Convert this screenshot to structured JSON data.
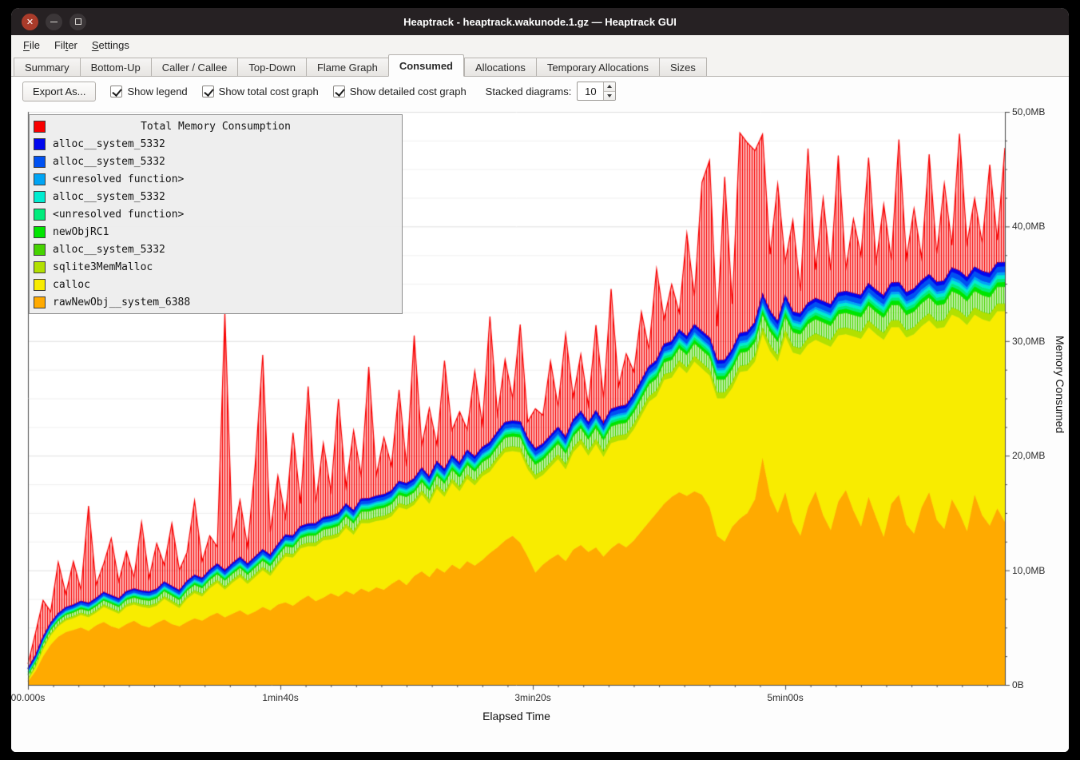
{
  "window": {
    "title": "Heaptrack - heaptrack.wakunode.1.gz — Heaptrack GUI"
  },
  "menubar": {
    "items": [
      {
        "label": "File",
        "underline": 0
      },
      {
        "label": "Filter",
        "underline": 3
      },
      {
        "label": "Settings",
        "underline": 0
      }
    ]
  },
  "tabs": {
    "items": [
      "Summary",
      "Bottom-Up",
      "Caller / Callee",
      "Top-Down",
      "Flame Graph",
      "Consumed",
      "Allocations",
      "Temporary Allocations",
      "Sizes"
    ],
    "active_index": 5
  },
  "toolbar": {
    "export_label": "Export As...",
    "checkboxes": [
      {
        "label": "Show legend",
        "checked": true
      },
      {
        "label": "Show total cost graph",
        "checked": true
      },
      {
        "label": "Show detailed cost graph",
        "checked": true
      }
    ],
    "stacked_label": "Stacked diagrams:",
    "stacked_value": "10"
  },
  "chart_data": {
    "type": "area",
    "stacked": true,
    "legend_title": "Total Memory Consumption",
    "x_title": "Elapsed Time",
    "y_title": "Memory Consumed",
    "xlim_s": [
      0,
      387
    ],
    "ylim_mb": [
      0,
      50
    ],
    "x_step_s": 3,
    "n_points": 130,
    "grid": "horizontal-light",
    "x_ticks": [
      {
        "t": 0,
        "label": "00.000s"
      },
      {
        "t": 100,
        "label": "1min40s"
      },
      {
        "t": 200,
        "label": "3min20s"
      },
      {
        "t": 300,
        "label": "5min00s"
      }
    ],
    "y_ticks": [
      {
        "mb": 0,
        "label": "0B"
      },
      {
        "mb": 10,
        "label": "10,0MB"
      },
      {
        "mb": 20,
        "label": "20,0MB"
      },
      {
        "mb": 30,
        "label": "30,0MB"
      },
      {
        "mb": 40,
        "label": "40,0MB"
      },
      {
        "mb": 50,
        "label": "50,0MB"
      }
    ],
    "series": [
      {
        "name": "rawNewObj__system_6388",
        "color": "#ffaa00",
        "values": [
          0.3,
          1.2,
          2.5,
          3.5,
          4.2,
          4.6,
          4.8,
          5.0,
          4.7,
          5.2,
          5.5,
          5.1,
          4.9,
          5.3,
          5.6,
          5.2,
          5.0,
          5.4,
          5.7,
          5.3,
          5.1,
          5.5,
          5.8,
          5.6,
          6.0,
          6.3,
          5.9,
          6.2,
          6.5,
          6.1,
          6.4,
          6.8,
          6.5,
          7.0,
          7.2,
          6.9,
          7.4,
          7.8,
          7.3,
          7.6,
          8.0,
          7.7,
          8.2,
          7.9,
          8.4,
          8.1,
          8.5,
          8.3,
          8.8,
          9.2,
          8.7,
          9.5,
          9.9,
          9.4,
          10.2,
          9.8,
          10.5,
          10.1,
          10.8,
          10.4,
          10.9,
          11.5,
          12.0,
          12.6,
          13.0,
          12.4,
          11.2,
          9.8,
          10.5,
          11.0,
          11.4,
          10.8,
          11.8,
          12.2,
          11.6,
          12.0,
          11.2,
          11.9,
          12.4,
          12.0,
          12.6,
          13.4,
          14.2,
          15.0,
          15.8,
          16.4,
          16.8,
          16.5,
          16.9,
          16.6,
          15.5,
          13.0,
          12.5,
          13.8,
          14.5,
          15.0,
          16.2,
          19.8,
          16.5,
          15.0,
          16.8,
          14.2,
          13.0,
          15.5,
          16.9,
          14.8,
          13.5,
          16.0,
          17.0,
          15.2,
          13.8,
          16.4,
          14.6,
          12.9,
          15.8,
          16.6,
          14.0,
          13.2,
          15.5,
          16.8,
          14.4,
          13.6,
          16.2,
          15.0,
          13.4,
          16.6,
          14.8,
          13.9,
          15.4,
          14.2
        ]
      },
      {
        "name": "calloc",
        "color": "#f8ec00",
        "values": [
          0.1,
          0.3,
          0.6,
          0.8,
          0.9,
          1.0,
          1.0,
          1.1,
          1.2,
          1.1,
          1.3,
          1.4,
          1.3,
          1.5,
          1.4,
          1.6,
          1.7,
          1.5,
          1.8,
          1.8,
          1.6,
          2.0,
          2.2,
          2.1,
          2.4,
          2.6,
          2.4,
          2.7,
          2.9,
          2.7,
          3.0,
          3.2,
          3.0,
          3.4,
          4.0,
          4.2,
          4.5,
          4.3,
          4.8,
          5.0,
          4.7,
          5.2,
          5.5,
          5.2,
          5.7,
          6.0,
          5.8,
          6.1,
          5.9,
          6.3,
          6.6,
          6.2,
          6.7,
          6.4,
          6.9,
          6.6,
          7.1,
          6.8,
          7.2,
          7.0,
          7.3,
          7.1,
          7.5,
          7.7,
          7.4,
          7.9,
          7.6,
          8.1,
          7.8,
          8.0,
          8.3,
          8.0,
          8.5,
          8.8,
          8.4,
          9.0,
          8.7,
          9.2,
          8.9,
          9.4,
          9.7,
          10.1,
          10.5,
          10.2,
          10.8,
          10.4,
          11.0,
          10.7,
          11.3,
          11.0,
          11.5,
          12.0,
          12.5,
          12.1,
          12.8,
          12.4,
          12.0,
          10.8,
          12.6,
          13.2,
          13.6,
          14.8,
          15.8,
          14.2,
          13.2,
          15.0,
          16.0,
          14.5,
          13.6,
          15.2,
          16.4,
          14.8,
          16.0,
          17.2,
          15.4,
          14.6,
          16.3,
          17.4,
          15.8,
          15.0,
          16.7,
          17.6,
          16.1,
          17.0,
          18.0,
          15.7,
          17.1,
          17.8,
          17.2,
          18.4
        ]
      },
      {
        "name": "sqlite3MemMalloc",
        "color": "#b2e000",
        "ramp_mb": [
          0.15,
          0.65
        ]
      },
      {
        "name": "alloc__system_5332",
        "color": "#46d300",
        "ramp_mb": [
          0.3,
          1.5
        ],
        "hatched": true
      },
      {
        "name": "newObjRC1",
        "color": "#00e400",
        "ramp_mb": [
          0.1,
          0.4
        ]
      },
      {
        "name": "<unresolved function>",
        "color": "#00ec7c",
        "ramp_mb": [
          0.08,
          0.3
        ]
      },
      {
        "name": "alloc__system_5332",
        "color": "#00ecd0",
        "ramp_mb": [
          0.08,
          0.3
        ]
      },
      {
        "name": "<unresolved function>",
        "color": "#00a4f4",
        "ramp_mb": [
          0.06,
          0.25
        ]
      },
      {
        "name": "alloc__system_5332",
        "color": "#0051f2",
        "ramp_mb": [
          0.15,
          0.5
        ]
      },
      {
        "name": "alloc__system_5332",
        "color": "#0007ee",
        "ramp_mb": [
          0.1,
          0.35
        ]
      }
    ],
    "total": {
      "name": "Total Memory Consumption",
      "color": "#f80000",
      "extra_above_stack_mb": [
        0.4,
        2.0,
        3.2,
        1.0,
        4.5,
        1.2,
        3.8,
        1.0,
        8.5,
        1.2,
        2.5,
        5.0,
        1.5,
        3.5,
        1.0,
        6.0,
        1.2,
        4.0,
        1.5,
        5.5,
        1.8,
        2.5,
        6.5,
        1.5,
        3.0,
        1.5,
        22.5,
        2.0,
        5.0,
        1.5,
        8.0,
        17.0,
        2.0,
        6.0,
        1.5,
        9.0,
        2.0,
        12.0,
        1.8,
        6.5,
        2.2,
        10.0,
        1.5,
        7.0,
        2.0,
        11.5,
        1.8,
        5.0,
        2.2,
        8.0,
        1.5,
        12.5,
        2.0,
        6.0,
        1.5,
        9.5,
        2.2,
        4.5,
        1.8,
        7.5,
        2.0,
        11.0,
        1.5,
        5.5,
        2.0,
        8.5,
        1.5,
        3.5,
        2.5,
        6.5,
        1.8,
        9.0,
        2.0,
        5.0,
        1.5,
        7.5,
        2.2,
        10.5,
        1.8,
        4.5,
        2.0,
        6.0,
        1.5,
        8.0,
        2.2,
        5.0,
        1.5,
        9.0,
        2.5,
        13.0,
        15.5,
        3.0,
        16.0,
        4.0,
        17.5,
        16.5,
        15.0,
        14.0,
        5.0,
        12.0,
        3.0,
        8.0,
        2.0,
        13.5,
        2.5,
        9.0,
        3.0,
        12.0,
        2.0,
        6.5,
        3.5,
        11.0,
        2.5,
        8.0,
        2.0,
        12.5,
        3.0,
        7.0,
        2.0,
        10.5,
        2.5,
        8.5,
        2.0,
        12.0,
        3.0,
        6.0,
        2.5,
        9.5,
        2.0,
        10.0
      ]
    }
  }
}
